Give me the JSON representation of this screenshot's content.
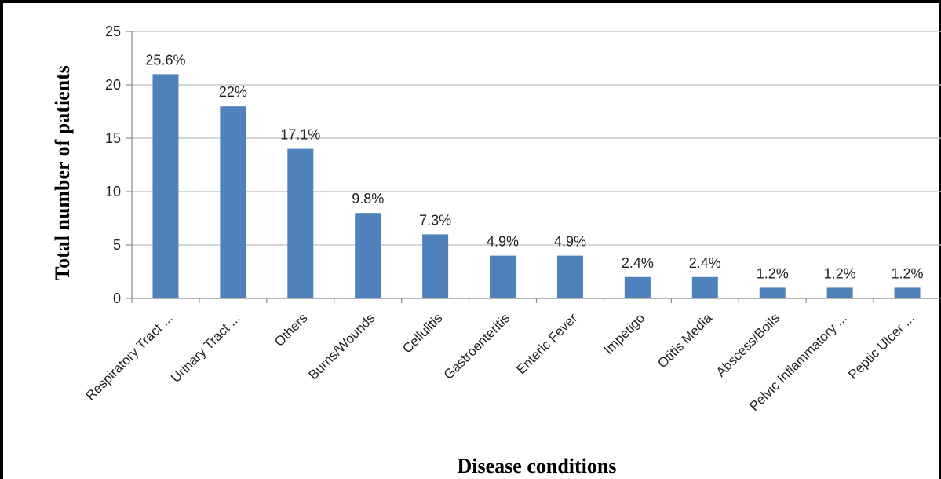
{
  "chart_data": {
    "type": "bar",
    "categories": [
      "Respiratory Tract ...",
      "Urinary Tract ...",
      "Others",
      "Burns/Wounds",
      "Cellulitis",
      "Gastroenteritis",
      "Enteric Fever",
      "Impetigo",
      "Otitis Media",
      "Abscess/Boils",
      "Pelvic Inflammatory ...",
      "Peptic Ulcer ..."
    ],
    "values": [
      21,
      18,
      14,
      8,
      6,
      4,
      4,
      2,
      2,
      1,
      1,
      1
    ],
    "data_labels": [
      "25.6%",
      "22%",
      "17.1%",
      "9.8%",
      "7.3%",
      "4.9%",
      "4.9%",
      "2.4%",
      "2.4%",
      "1.2%",
      "1.2%",
      "1.2%"
    ],
    "xlabel": "Disease conditions",
    "ylabel": "Total number of patients",
    "ylim": [
      0,
      25
    ],
    "yticks": [
      0,
      5,
      10,
      15,
      20,
      25
    ],
    "grid": true,
    "bar_color": "#4f81bd",
    "grid_color": "#bfbfbf"
  }
}
